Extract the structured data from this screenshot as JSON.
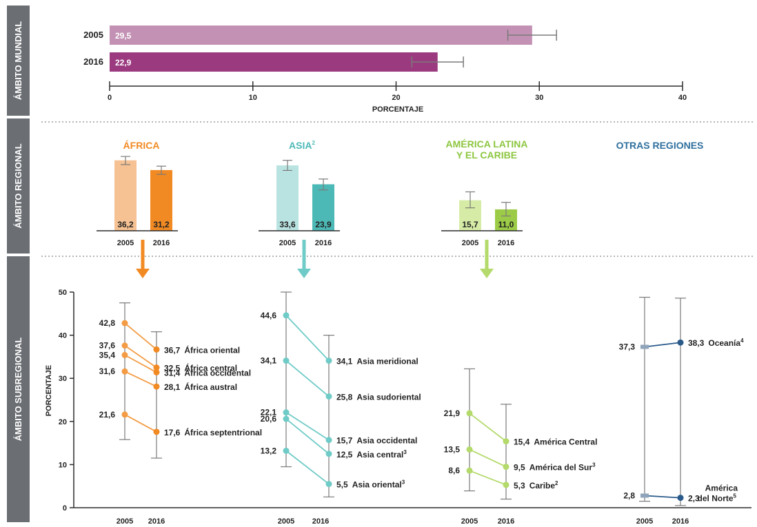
{
  "colors": {
    "side_band": "#6b6e73",
    "axis": "#2b2b2b",
    "whisker": "#7a7a7a",
    "world_2005": "#c391b4",
    "world_2016": "#9b3a7f",
    "africa_2005": "#f6c293",
    "africa_2016": "#f28a23",
    "africa_line": "#f39c45",
    "asia_2005": "#b9e3e1",
    "asia_2016": "#4cb9b6",
    "asia_line": "#6fcbc7",
    "latam_2005": "#d6eca6",
    "latam_2016": "#9ccc47",
    "latam_line": "#b3da6a",
    "other_title": "#2e6f9e",
    "oceania": "#2a5a8a",
    "oceania_2005": "#8fa4ba"
  },
  "side_labels": {
    "world": "ÁMBITO MUNDIAL",
    "regional": "ÁMBITO REGIONAL",
    "subregional": "ÁMBITO SUBREGIONAL"
  },
  "world": {
    "xlabel": "PORCENTAJE",
    "ticks": [
      "0",
      "10",
      "20",
      "30",
      "40"
    ],
    "xlim": [
      0,
      40
    ]
  },
  "regional_titles": {
    "africa": "ÁFRICA",
    "asia": "ASIA",
    "asia_sup": "2",
    "latam_line1": "AMÉRICA LATINA",
    "latam_line2": "Y EL CARIBE",
    "other": "OTRAS REGIONES"
  },
  "year_labels": {
    "y2005": "2005",
    "y2016": "2016"
  },
  "subregional_axis": {
    "ylabel": "PORCENTAJE",
    "ticks": [
      "0",
      "10",
      "20",
      "30",
      "40",
      "50"
    ],
    "ylim": [
      0,
      50
    ]
  },
  "chart_data": [
    {
      "type": "bar",
      "id": "world",
      "orientation": "horizontal",
      "categories": [
        "2005",
        "2016"
      ],
      "values": [
        29.5,
        22.9
      ],
      "labels": [
        "29,5",
        "22,9"
      ],
      "error_low": [
        27.8,
        21.1
      ],
      "error_high": [
        31.2,
        24.7
      ],
      "xlabel": "PORCENTAJE",
      "xlim": [
        0,
        40
      ]
    },
    {
      "type": "bar",
      "id": "regional",
      "groups": [
        {
          "key": "africa",
          "values": [
            36.2,
            31.2
          ],
          "labels": [
            "36,2",
            "31,2"
          ],
          "error_low": [
            34.0,
            29.0
          ],
          "error_high": [
            38.2,
            33.2
          ]
        },
        {
          "key": "asia",
          "values": [
            33.6,
            23.9
          ],
          "labels": [
            "33,6",
            "23,9"
          ],
          "error_low": [
            31.0,
            21.0
          ],
          "error_high": [
            36.2,
            26.6
          ]
        },
        {
          "key": "latam",
          "values": [
            15.7,
            11.0
          ],
          "labels": [
            "15,7",
            "11,0"
          ],
          "error_low": [
            11.8,
            7.6
          ],
          "error_high": [
            20.0,
            14.6
          ]
        }
      ],
      "categories": [
        "2005",
        "2016"
      ]
    },
    {
      "type": "line",
      "id": "subregional",
      "x": [
        "2005",
        "2016"
      ],
      "ylabel": "PORCENTAJE",
      "ylim": [
        0,
        50
      ],
      "groups": [
        {
          "key": "africa",
          "series": [
            {
              "name": "África oriental",
              "values": [
                42.8,
                36.7
              ],
              "labels": [
                "42,8",
                "36,7"
              ]
            },
            {
              "name": "África central",
              "values": [
                37.6,
                32.5
              ],
              "labels": [
                "37,6",
                "32,5"
              ]
            },
            {
              "name": "África occidental",
              "values": [
                35.4,
                31.4
              ],
              "labels": [
                "35,4",
                "31,4"
              ]
            },
            {
              "name": "África austral",
              "values": [
                31.6,
                28.1
              ],
              "labels": [
                "31,6",
                "28,1"
              ]
            },
            {
              "name": "África septentrional",
              "values": [
                21.6,
                17.6
              ],
              "labels": [
                "21,6",
                "17,6"
              ]
            }
          ]
        },
        {
          "key": "asia",
          "series": [
            {
              "name": "Asia meridional",
              "values": [
                44.6,
                34.1
              ],
              "labels": [
                "44,6",
                "34,1"
              ]
            },
            {
              "name": "Asia sudoriental",
              "values": [
                34.1,
                25.8
              ],
              "labels": [
                "34,1",
                "25,8"
              ]
            },
            {
              "name": "Asia occidental",
              "values": [
                22.1,
                15.7
              ],
              "labels": [
                "22,1",
                "15,7"
              ]
            },
            {
              "name": "Asia central",
              "sup": "3",
              "values": [
                20.6,
                12.5
              ],
              "labels": [
                "20,6",
                "12,5"
              ]
            },
            {
              "name": "Asia oriental",
              "sup": "3",
              "values": [
                13.2,
                5.5
              ],
              "labels": [
                "13,2",
                "5,5"
              ]
            }
          ]
        },
        {
          "key": "latam",
          "series": [
            {
              "name": "América Central",
              "values": [
                21.9,
                15.4
              ],
              "labels": [
                "21,9",
                "15,4"
              ]
            },
            {
              "name": "América del Sur",
              "sup": "3",
              "values": [
                13.5,
                9.5
              ],
              "labels": [
                "13,5",
                "9,5"
              ]
            },
            {
              "name": "Caribe",
              "sup": "2",
              "values": [
                8.6,
                5.3
              ],
              "labels": [
                "8,6",
                "5,3"
              ]
            }
          ]
        },
        {
          "key": "other",
          "series": [
            {
              "name": "Oceanía",
              "sup": "4",
              "values": [
                37.3,
                38.3
              ],
              "labels": [
                "37,3",
                "38,3"
              ]
            },
            {
              "name": "América del Norte",
              "name_line1": "América",
              "name_line2": "del Norte",
              "sup": "5",
              "values": [
                2.8,
                2.3
              ],
              "labels": [
                "2,8",
                "2,3"
              ]
            }
          ]
        }
      ]
    }
  ]
}
